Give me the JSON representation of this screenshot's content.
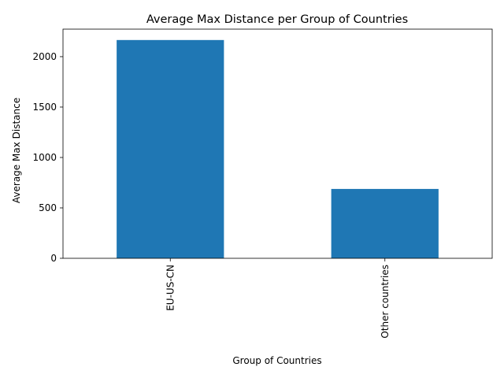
{
  "chart_data": {
    "type": "bar",
    "title": "Average Max Distance per Group of Countries",
    "xlabel": "Group of Countries",
    "ylabel": "Average Max Distance",
    "categories": [
      "EU-US-CN",
      "Other countries"
    ],
    "values": [
      2165,
      688
    ],
    "ylim": [
      0,
      2273
    ],
    "yticks": [
      0,
      500,
      1000,
      1500,
      2000
    ],
    "ytick_labels": [
      "0",
      "500",
      "1000",
      "1500",
      "2000"
    ],
    "bar_color": "#1f77b4",
    "grid": false,
    "legend": "none"
  }
}
